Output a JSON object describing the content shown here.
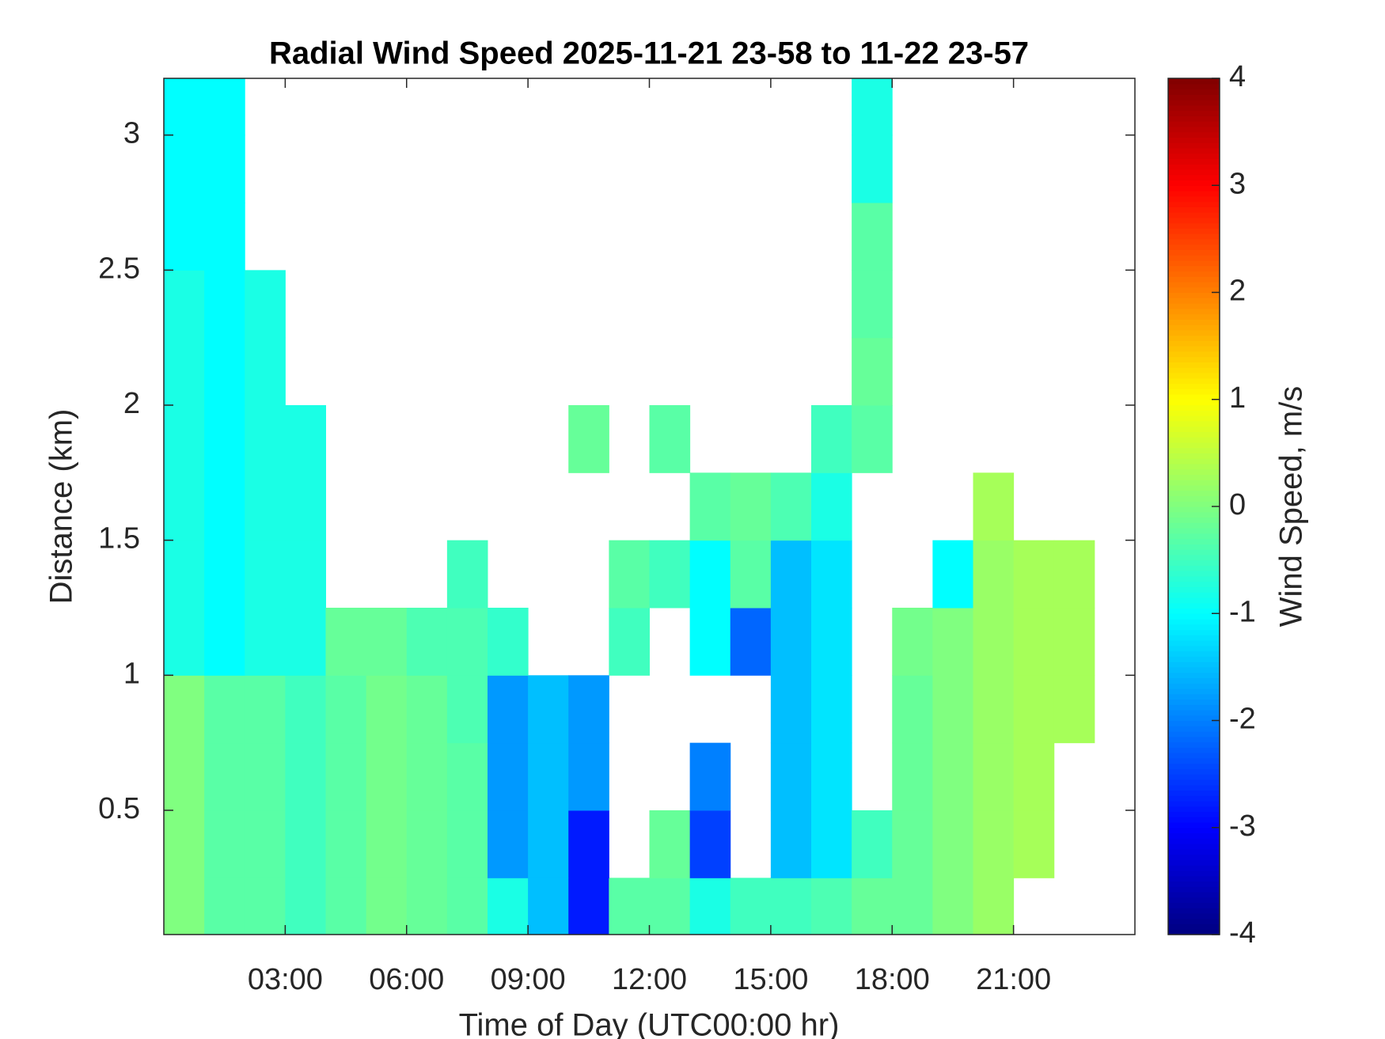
{
  "chart_data": {
    "type": "heatmap",
    "title": "Radial Wind Speed 2025-11-21 23-58 to 11-22 23-57",
    "xlabel": "Time of Day (UTC00:00 hr)",
    "ylabel": "Distance (km)",
    "xlim": [
      0,
      24
    ],
    "ylim": [
      0.04,
      3.21
    ],
    "xticks": [
      {
        "value": 3,
        "label": "03:00"
      },
      {
        "value": 6,
        "label": "06:00"
      },
      {
        "value": 9,
        "label": "09:00"
      },
      {
        "value": 12,
        "label": "12:00"
      },
      {
        "value": 15,
        "label": "15:00"
      },
      {
        "value": 18,
        "label": "18:00"
      },
      {
        "value": 21,
        "label": "21:00"
      }
    ],
    "yticks": [
      0.5,
      1,
      1.5,
      2,
      2.5,
      3
    ],
    "x_edges": [
      0,
      1,
      2,
      3,
      4,
      5,
      6,
      7,
      8,
      9,
      10,
      11,
      12,
      13,
      14,
      15,
      16,
      17,
      18,
      19,
      20,
      21,
      22,
      23,
      24
    ],
    "y_edges": [
      0.04,
      0.25,
      0.5,
      0.75,
      1,
      1.25,
      1.5,
      1.75,
      2,
      2.25,
      2.5,
      2.75,
      3,
      3.21
    ],
    "z": [
      [
        0,
        -0.3,
        -0.3,
        -0.5,
        -0.3,
        -0.1,
        -0.2,
        -0.3,
        -0.8,
        -1.5,
        -2.8,
        -0.3,
        -0.3,
        -0.8,
        -0.5,
        -0.5,
        -0.4,
        -0.2,
        -0.2,
        0,
        0.2,
        null,
        null,
        null
      ],
      [
        0,
        -0.3,
        -0.3,
        -0.5,
        -0.3,
        -0.1,
        -0.2,
        -0.3,
        -1.8,
        -1.5,
        -2.8,
        null,
        -0.2,
        -2.5,
        null,
        -1.5,
        -1.2,
        -0.5,
        -0.2,
        0,
        0.2,
        0.3,
        null,
        null
      ],
      [
        0,
        -0.3,
        -0.3,
        -0.5,
        -0.3,
        -0.1,
        -0.2,
        -0.3,
        -1.8,
        -1.5,
        -1.8,
        null,
        null,
        -2,
        null,
        -1.5,
        -1.2,
        null,
        -0.2,
        0,
        0.2,
        0.3,
        null,
        null
      ],
      [
        0,
        -0.3,
        -0.3,
        -0.5,
        -0.3,
        -0.1,
        -0.2,
        -0.4,
        -1.8,
        -1.5,
        -1.8,
        null,
        null,
        null,
        null,
        -1.5,
        -1.2,
        null,
        -0.2,
        0,
        0.2,
        0.3,
        0.3,
        null
      ],
      [
        -0.8,
        -1,
        -0.8,
        -0.8,
        -0.2,
        -0.2,
        -0.4,
        -0.4,
        -0.6,
        null,
        null,
        -0.5,
        null,
        -1,
        -2.2,
        -1.5,
        -1.2,
        null,
        -0.1,
        0,
        0.2,
        0.3,
        0.3,
        null
      ],
      [
        -0.8,
        -1,
        -0.8,
        -0.8,
        null,
        null,
        null,
        -0.5,
        null,
        null,
        null,
        -0.3,
        -0.5,
        -1,
        -0.3,
        -1.5,
        -1.2,
        null,
        null,
        -1,
        0.2,
        0.3,
        0.3,
        null
      ],
      [
        -0.8,
        -1,
        -0.8,
        -0.8,
        null,
        null,
        null,
        null,
        null,
        null,
        null,
        null,
        null,
        -0.3,
        -0.2,
        -0.4,
        -0.8,
        null,
        null,
        null,
        0.3,
        null,
        null,
        null
      ],
      [
        -0.8,
        -1,
        -0.8,
        -0.8,
        null,
        null,
        null,
        null,
        null,
        null,
        -0.2,
        null,
        -0.3,
        null,
        null,
        null,
        -0.5,
        -0.3,
        null,
        null,
        null,
        null,
        null,
        null
      ],
      [
        -0.8,
        -1,
        -0.8,
        null,
        null,
        null,
        null,
        null,
        null,
        null,
        null,
        null,
        null,
        null,
        null,
        null,
        null,
        -0.2,
        null,
        null,
        null,
        null,
        null,
        null
      ],
      [
        -0.8,
        -1,
        -0.8,
        null,
        null,
        null,
        null,
        null,
        null,
        null,
        null,
        null,
        null,
        null,
        null,
        null,
        null,
        -0.3,
        null,
        null,
        null,
        null,
        null,
        null
      ],
      [
        -1,
        -1,
        null,
        null,
        null,
        null,
        null,
        null,
        null,
        null,
        null,
        null,
        null,
        null,
        null,
        null,
        null,
        -0.3,
        null,
        null,
        null,
        null,
        null,
        null
      ],
      [
        -1,
        -1,
        null,
        null,
        null,
        null,
        null,
        null,
        null,
        null,
        null,
        null,
        null,
        null,
        null,
        null,
        null,
        -0.8,
        null,
        null,
        null,
        null,
        null,
        null
      ],
      [
        -1,
        -1,
        null,
        null,
        null,
        null,
        null,
        null,
        null,
        null,
        null,
        null,
        null,
        null,
        null,
        null,
        null,
        -0.8,
        null,
        null,
        null,
        null,
        null,
        null
      ]
    ],
    "colormap": "jet",
    "colorbar": {
      "label": "Wind Speed, m/s",
      "clim": [
        -4,
        4
      ],
      "ticks": [
        -4,
        -3,
        -2,
        -1,
        0,
        1,
        2,
        3,
        4
      ]
    }
  }
}
